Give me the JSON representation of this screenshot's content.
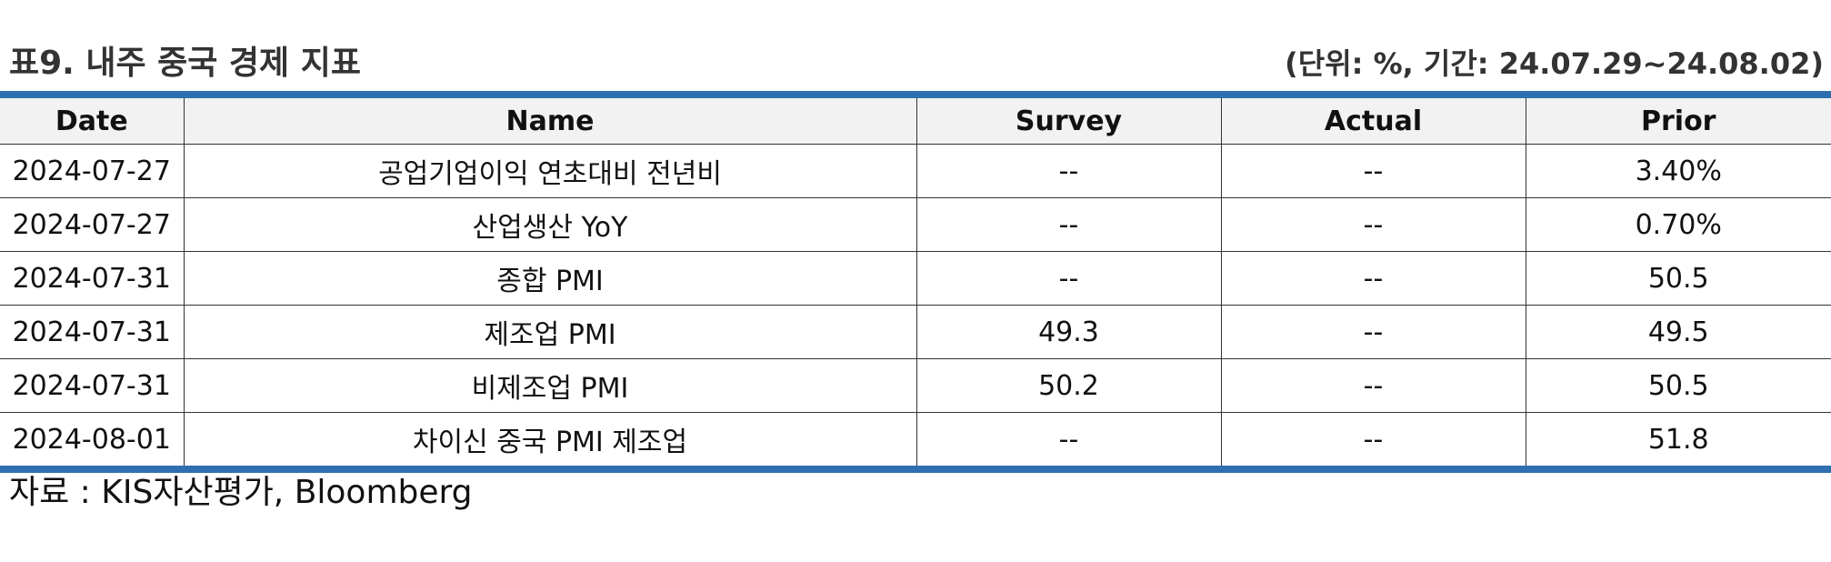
{
  "header": {
    "title": "표9. 내주 중국 경제 지표",
    "subtitle": "(단위: %, 기간: 24.07.29~24.08.02)"
  },
  "table": {
    "columns": [
      "Date",
      "Name",
      "Survey",
      "Actual",
      "Prior"
    ],
    "rows": [
      [
        "2024-07-27",
        "공업기업이익 연초대비 전년비",
        "--",
        "--",
        "3.40%"
      ],
      [
        "2024-07-27",
        "산업생산 YoY",
        "--",
        "--",
        "0.70%"
      ],
      [
        "2024-07-31",
        "종합 PMI",
        "--",
        "--",
        "50.5"
      ],
      [
        "2024-07-31",
        "제조업 PMI",
        "49.3",
        "--",
        "49.5"
      ],
      [
        "2024-07-31",
        "비제조업 PMI",
        "50.2",
        "--",
        "50.5"
      ],
      [
        "2024-08-01",
        "차이신 중국 PMI 제조업",
        "--",
        "--",
        "51.8"
      ]
    ]
  },
  "footer": {
    "source": "자료 : KIS자산평가, Bloomberg"
  },
  "colors": {
    "accent_border": "#2e6fb0",
    "header_bg": "#f2f2f2",
    "text": "#111111"
  }
}
